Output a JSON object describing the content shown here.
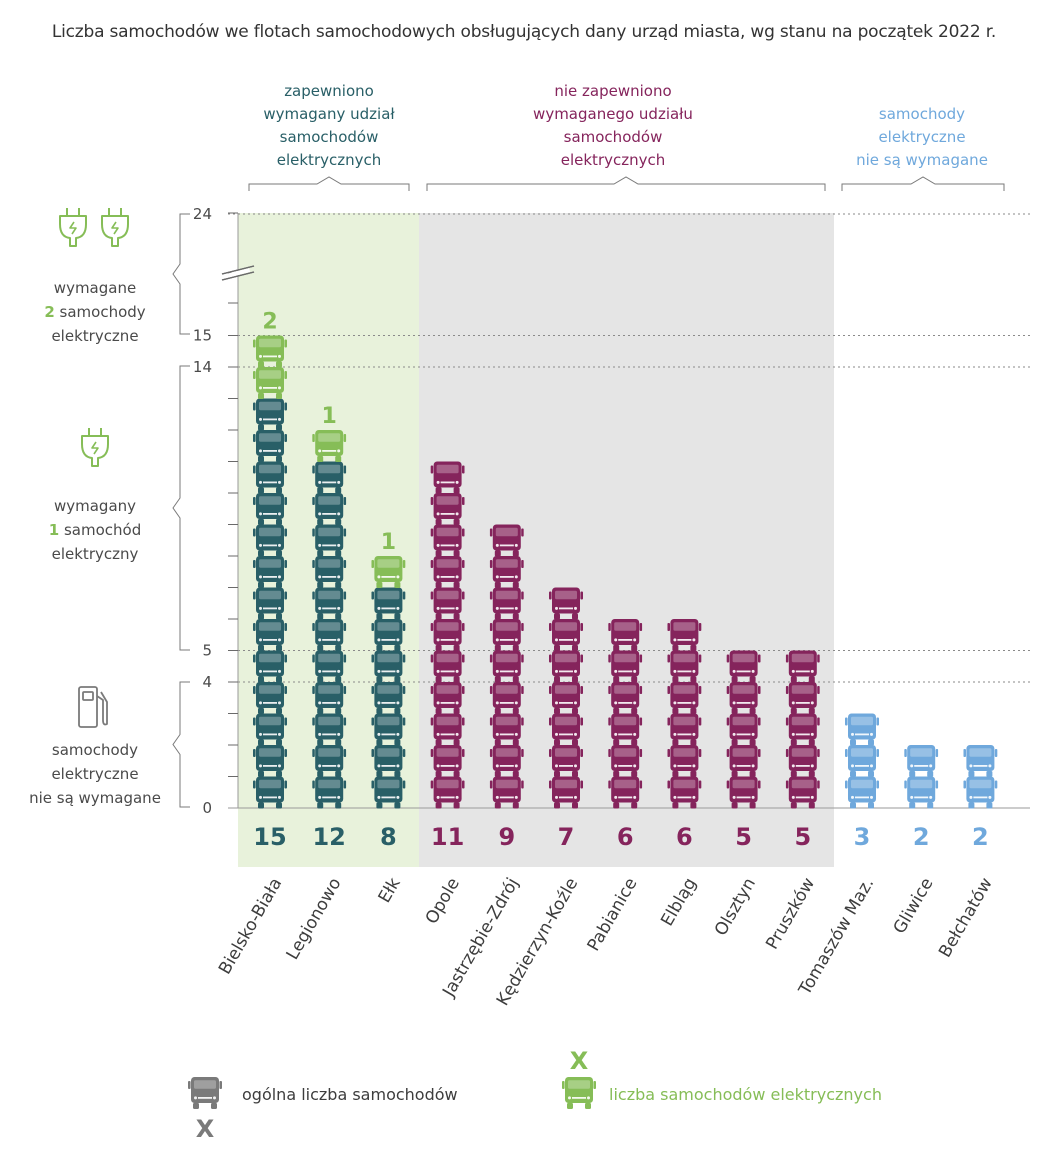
{
  "title": "Liczba samochodów we flotach samochodowych obsługujących dany urząd miasta, wg stanu na początek 2022 r.",
  "colors": {
    "teal": "#295f67",
    "purple": "#85245c",
    "blue": "#6fa8dc",
    "green": "#86bd57",
    "grey": "#7a7a7a",
    "green_bg": "#e8f2db",
    "grey_bg": "#e5e5e5"
  },
  "groups": [
    {
      "id": "ok",
      "label": [
        "zapewniono",
        "wymagany udział",
        "samochodów",
        "elektrycznych"
      ],
      "color": "#295f67"
    },
    {
      "id": "notok",
      "label": [
        "nie zapewniono",
        "wymaganego udziału",
        "samochodów",
        "elektrycznych"
      ],
      "color": "#85245c"
    },
    {
      "id": "na",
      "label": [
        "samochody",
        "elektryczne",
        "nie są wymagane"
      ],
      "color": "#6fa8dc"
    }
  ],
  "side_labels": {
    "two": {
      "line1": "wymagane",
      "num": "2",
      "line2": "samochody",
      "line3": "elektryczne"
    },
    "one": {
      "line1": "wymagany",
      "num": "1",
      "line2": "samochód",
      "line3": "elektryczny"
    },
    "none": {
      "line1": "samochody",
      "line2": "elektryczne",
      "line3": "nie są wymagane"
    }
  },
  "legend": {
    "total": "ogólna liczba samochodów",
    "total_mark": "X",
    "electric": "liczba samochodów elektrycznych",
    "electric_mark": "X"
  },
  "chart_data": {
    "type": "bar",
    "title": "Liczba samochodów we flotach samochodowych obsługujących dany urząd miasta, wg stanu na początek 2022 r.",
    "xlabel": "",
    "ylabel": "",
    "y_ticks": [
      0,
      4,
      5,
      14,
      15,
      24
    ],
    "ylim": [
      0,
      24
    ],
    "axis_break": "between 15 and 24",
    "categories": [
      "Bielsko-Biała",
      "Legionowo",
      "Ełk",
      "Opole",
      "Jastrzębie-Zdrój",
      "Kędzierzyn-Koźle",
      "Pabianice",
      "Elbląg",
      "Olsztyn",
      "Pruszków",
      "Tomaszów Maz.",
      "Gliwice",
      "Bełchatów"
    ],
    "series": [
      {
        "name": "ogólna liczba samochodów",
        "values": [
          15,
          12,
          8,
          11,
          9,
          7,
          6,
          6,
          5,
          5,
          3,
          2,
          2
        ]
      },
      {
        "name": "liczba samochodów elektrycznych",
        "values": [
          2,
          1,
          1,
          0,
          0,
          0,
          0,
          0,
          0,
          0,
          0,
          0,
          0
        ]
      }
    ],
    "group_of_category": [
      "ok",
      "ok",
      "ok",
      "notok",
      "notok",
      "notok",
      "notok",
      "notok",
      "notok",
      "notok",
      "na",
      "na",
      "na"
    ]
  }
}
